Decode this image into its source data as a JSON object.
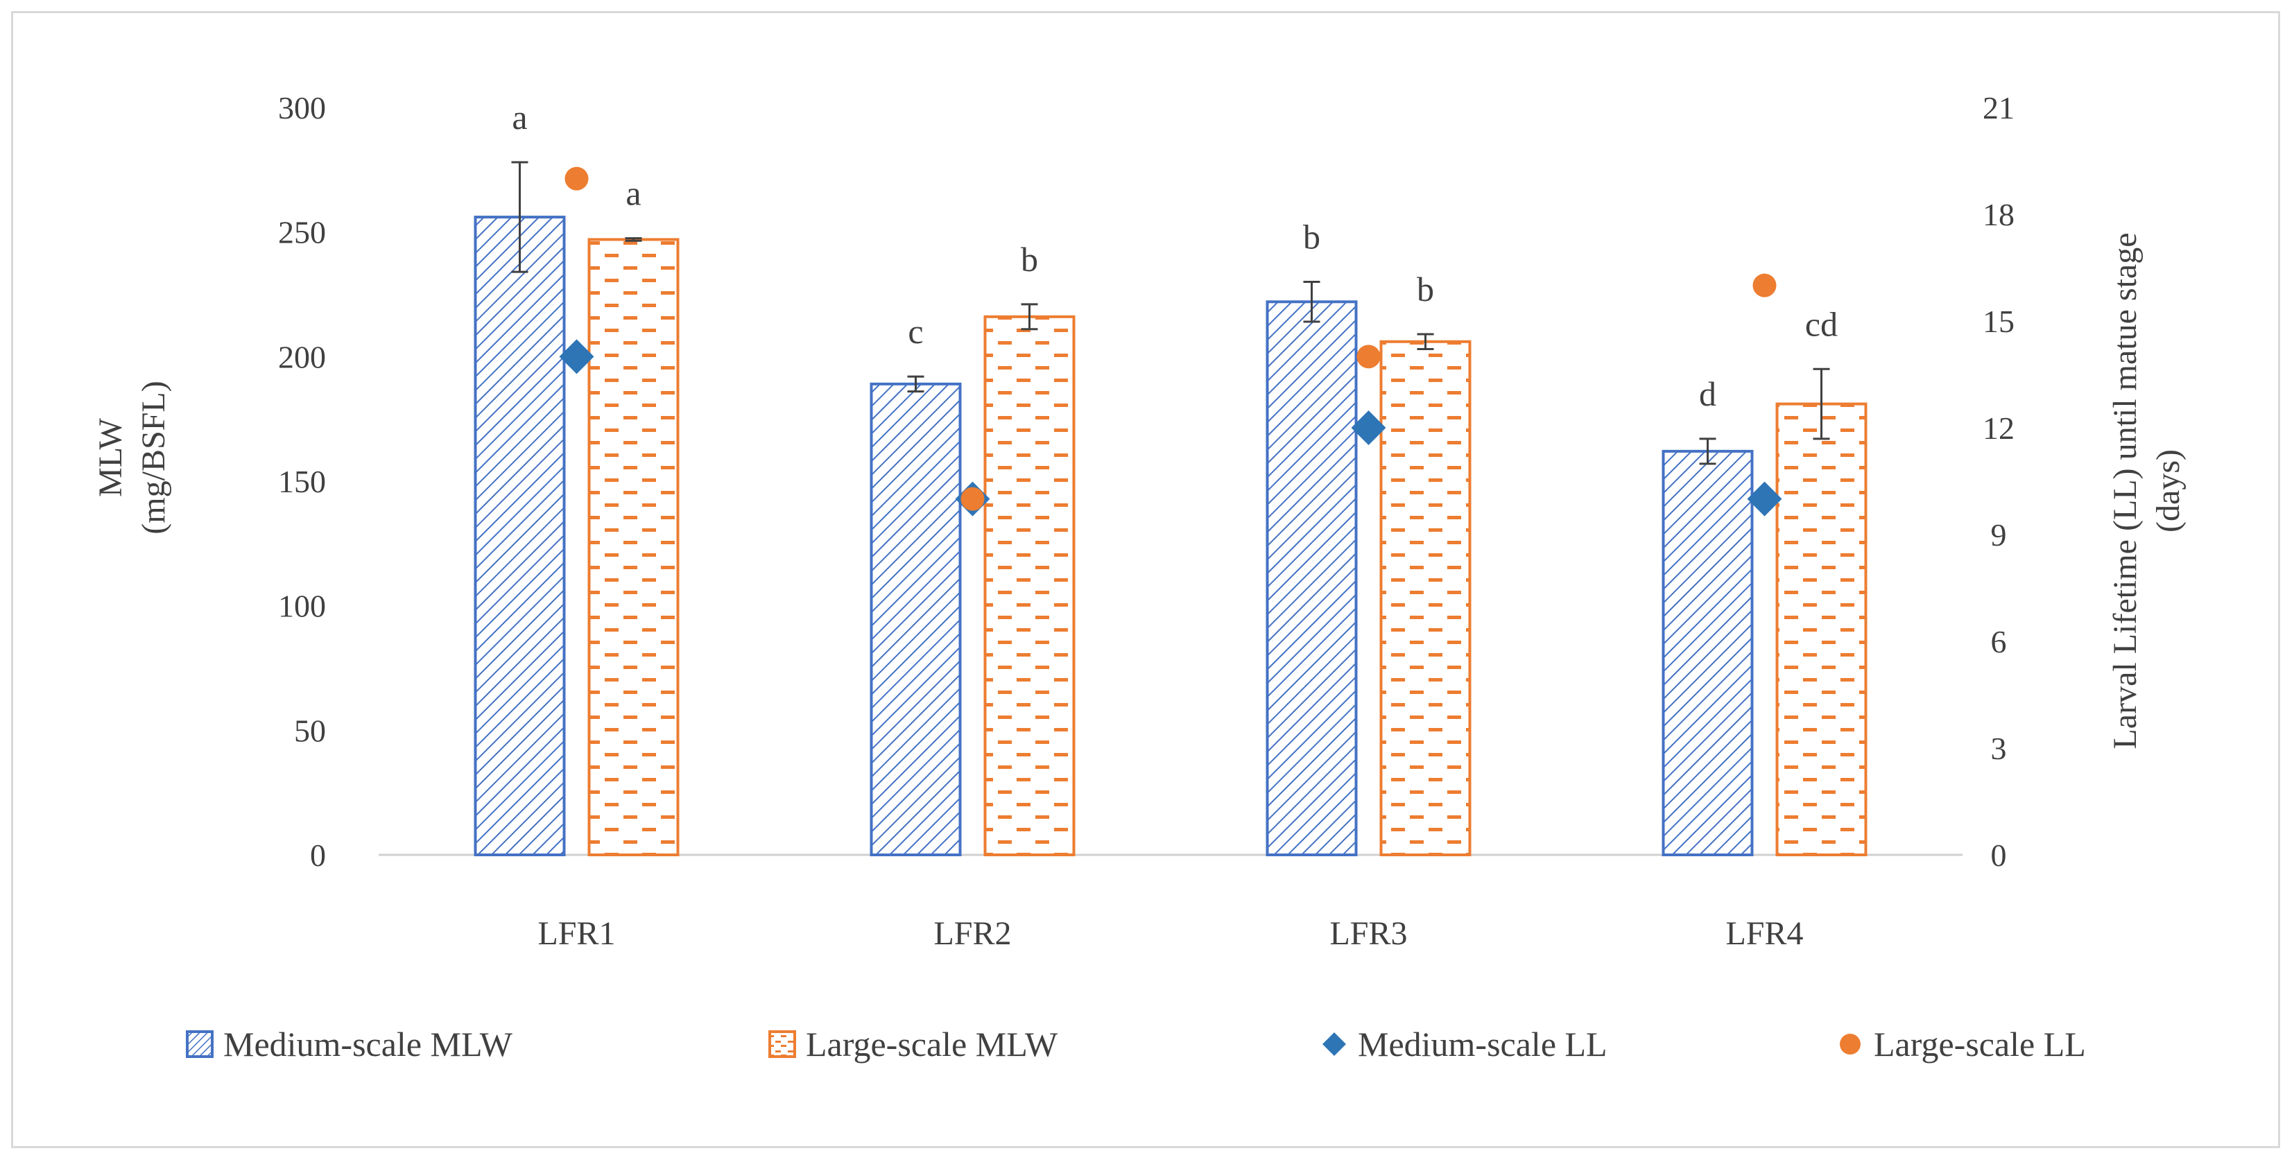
{
  "chart_data": {
    "type": "bar",
    "categories": [
      "LFR1",
      "LFR2",
      "LFR3",
      "LFR4"
    ],
    "y_left": {
      "label_lines": [
        "MLW",
        "(mg/BSFL)"
      ],
      "min": 0,
      "max": 300,
      "step": 50
    },
    "y_right": {
      "label_lines": [
        "Larval Lifetime (LL) until matue stage",
        "(days)"
      ],
      "min": 0,
      "max": 21,
      "step": 3
    },
    "bar_series": [
      {
        "name": "Medium-scale MLW",
        "axis": "left",
        "color": "#4472c4",
        "pattern": "diagonal",
        "values": [
          256,
          189,
          222,
          162
        ],
        "errors": [
          22,
          3,
          8,
          5
        ],
        "letters": [
          "a",
          "c",
          "b",
          "d"
        ]
      },
      {
        "name": "Large-scale MLW",
        "axis": "left",
        "color": "#ed7d31",
        "pattern": "dashes",
        "values": [
          247,
          216,
          206,
          181
        ],
        "errors": [
          0.5,
          5,
          3,
          14
        ],
        "letters": [
          "a",
          "b",
          "b",
          "cd"
        ]
      }
    ],
    "point_series": [
      {
        "name": "Medium-scale LL",
        "axis": "right",
        "color": "#2e75b6",
        "marker": "diamond",
        "values": [
          14,
          10,
          12,
          10
        ]
      },
      {
        "name": "Large-scale LL",
        "axis": "right",
        "color": "#ed7d31",
        "marker": "circle",
        "values": [
          19,
          10,
          14,
          16
        ]
      }
    ]
  }
}
